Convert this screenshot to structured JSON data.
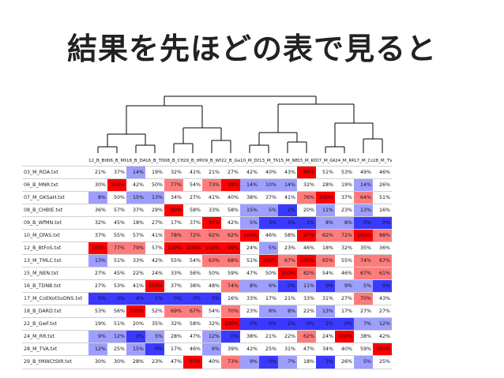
{
  "slide": {
    "title": "結果を先ほどの表で見ると"
  },
  "colors": {
    "high": "#ff0000",
    "medium_high": "#ff7c7c",
    "low": "#3a3aff",
    "medium_low": "#9e9eff",
    "neutral": "#ffffff",
    "grid_line": "#d0d0d0",
    "dendrogram": "#000000"
  },
  "table": {
    "columns": [
      "12_B_BtF",
      "06_B_MN",
      "18_B_DAI",
      "16_B_TDI",
      "08_B_CH",
      "29_B_tMV",
      "09_B_WfI",
      "22_B_Gw",
      "10_M_DfA",
      "13_M_TM",
      "15_M_NE",
      "03_M_RD",
      "07_M_GK",
      "24_M_RR",
      "17_M_Co",
      "28_M_TVA"
    ],
    "rows": [
      {
        "label": "03_M_RDA.txt",
        "cells": [
          "21%",
          "37%",
          "14%",
          "19%",
          "32%",
          "41%",
          "21%",
          "27%",
          "42%",
          "40%",
          "43%",
          "99%",
          "51%",
          "53%",
          "49%",
          "46%"
        ]
      },
      {
        "label": "06_B_MNR.txt",
        "cells": [
          "30%",
          "100%",
          "42%",
          "50%",
          "77%",
          "54%",
          "73%",
          "98%",
          "14%",
          "10%",
          "14%",
          "32%",
          "28%",
          "19%",
          "14%",
          "26%"
        ]
      },
      {
        "label": "07_M_GKSaH.txt",
        "cells": [
          "8%",
          "50%",
          "15%",
          "13%",
          "34%",
          "27%",
          "41%",
          "40%",
          "38%",
          "37%",
          "41%",
          "76%",
          "100%",
          "37%",
          "64%",
          "51%"
        ]
      },
      {
        "label": "08_B_CHBtE.txt",
        "cells": [
          "36%",
          "57%",
          "37%",
          "29%",
          "90%",
          "58%",
          "33%",
          "58%",
          "15%",
          "5%",
          "2%",
          "20%",
          "11%",
          "23%",
          "13%",
          "16%"
        ]
      },
      {
        "label": "09_B_WfMN.txt",
        "cells": [
          "32%",
          "45%",
          "18%",
          "27%",
          "17%",
          "37%",
          "91%",
          "42%",
          "5%",
          "3%",
          "3%",
          "1%",
          "8%",
          "8%",
          "0%",
          "0%"
        ]
      },
      {
        "label": "10_M_DfAS.txt",
        "cells": [
          "37%",
          "55%",
          "57%",
          "41%",
          "78%",
          "72%",
          "62%",
          "62%",
          "100%",
          "46%",
          "58%",
          "97%",
          "62%",
          "72%",
          "100%",
          "88%"
        ]
      },
      {
        "label": "12_B_BtFoS.txt",
        "cells": [
          "100%",
          "77%",
          "79%",
          "57%",
          "100%",
          "100%",
          "100%",
          "99%",
          "24%",
          "5%",
          "23%",
          "46%",
          "18%",
          "32%",
          "35%",
          "36%"
        ]
      },
      {
        "label": "13_M_TMLC.txt",
        "cells": [
          "13%",
          "51%",
          "33%",
          "42%",
          "55%",
          "54%",
          "63%",
          "68%",
          "51%",
          "100%",
          "67%",
          "100%",
          "65%",
          "55%",
          "74%",
          "67%"
        ]
      },
      {
        "label": "15_M_NEN.txt",
        "cells": [
          "27%",
          "45%",
          "22%",
          "24%",
          "33%",
          "56%",
          "50%",
          "59%",
          "47%",
          "50%",
          "100%",
          "82%",
          "54%",
          "46%",
          "67%",
          "61%"
        ]
      },
      {
        "label": "16_B_TDNB.txt",
        "cells": [
          "27%",
          "53%",
          "41%",
          "100%",
          "37%",
          "38%",
          "48%",
          "74%",
          "8%",
          "6%",
          "0%",
          "11%",
          "0%",
          "9%",
          "5%",
          "0%"
        ]
      },
      {
        "label": "17_M_CoEKotSoDNS.txt",
        "cells": [
          "0%",
          "0%",
          "4%",
          "1%",
          "0%",
          "0%",
          "0%",
          "16%",
          "33%",
          "17%",
          "21%",
          "33%",
          "31%",
          "27%",
          "70%",
          "43%"
        ]
      },
      {
        "label": "18_B_DARD.txt",
        "cells": [
          "53%",
          "56%",
          "100%",
          "52%",
          "69%",
          "67%",
          "54%",
          "70%",
          "23%",
          "8%",
          "8%",
          "22%",
          "13%",
          "17%",
          "27%",
          "27%"
        ]
      },
      {
        "label": "22_B_GwF.txt",
        "cells": [
          "19%",
          "51%",
          "20%",
          "35%",
          "32%",
          "58%",
          "32%",
          "100%",
          "0%",
          "0%",
          "2%",
          "0%",
          "2%",
          "0%",
          "7%",
          "12%"
        ]
      },
      {
        "label": "24_M_RR.txt",
        "cells": [
          "9%",
          "12%",
          "0%",
          "5%",
          "28%",
          "47%",
          "12%",
          "0%",
          "38%",
          "21%",
          "22%",
          "62%",
          "24%",
          "100%",
          "38%",
          "42%"
        ]
      },
      {
        "label": "28_M_TVA.txt",
        "cells": [
          "12%",
          "25%",
          "15%",
          "0%",
          "17%",
          "46%",
          "6%",
          "39%",
          "42%",
          "25%",
          "31%",
          "47%",
          "34%",
          "40%",
          "59%",
          "100%"
        ]
      },
      {
        "label": "29_B_tMWCtStR.txt",
        "cells": [
          "30%",
          "30%",
          "28%",
          "23%",
          "47%",
          "97%",
          "40%",
          "73%",
          "9%",
          "0%",
          "7%",
          "18%",
          "3%",
          "26%",
          "5%",
          "25%"
        ]
      }
    ]
  }
}
